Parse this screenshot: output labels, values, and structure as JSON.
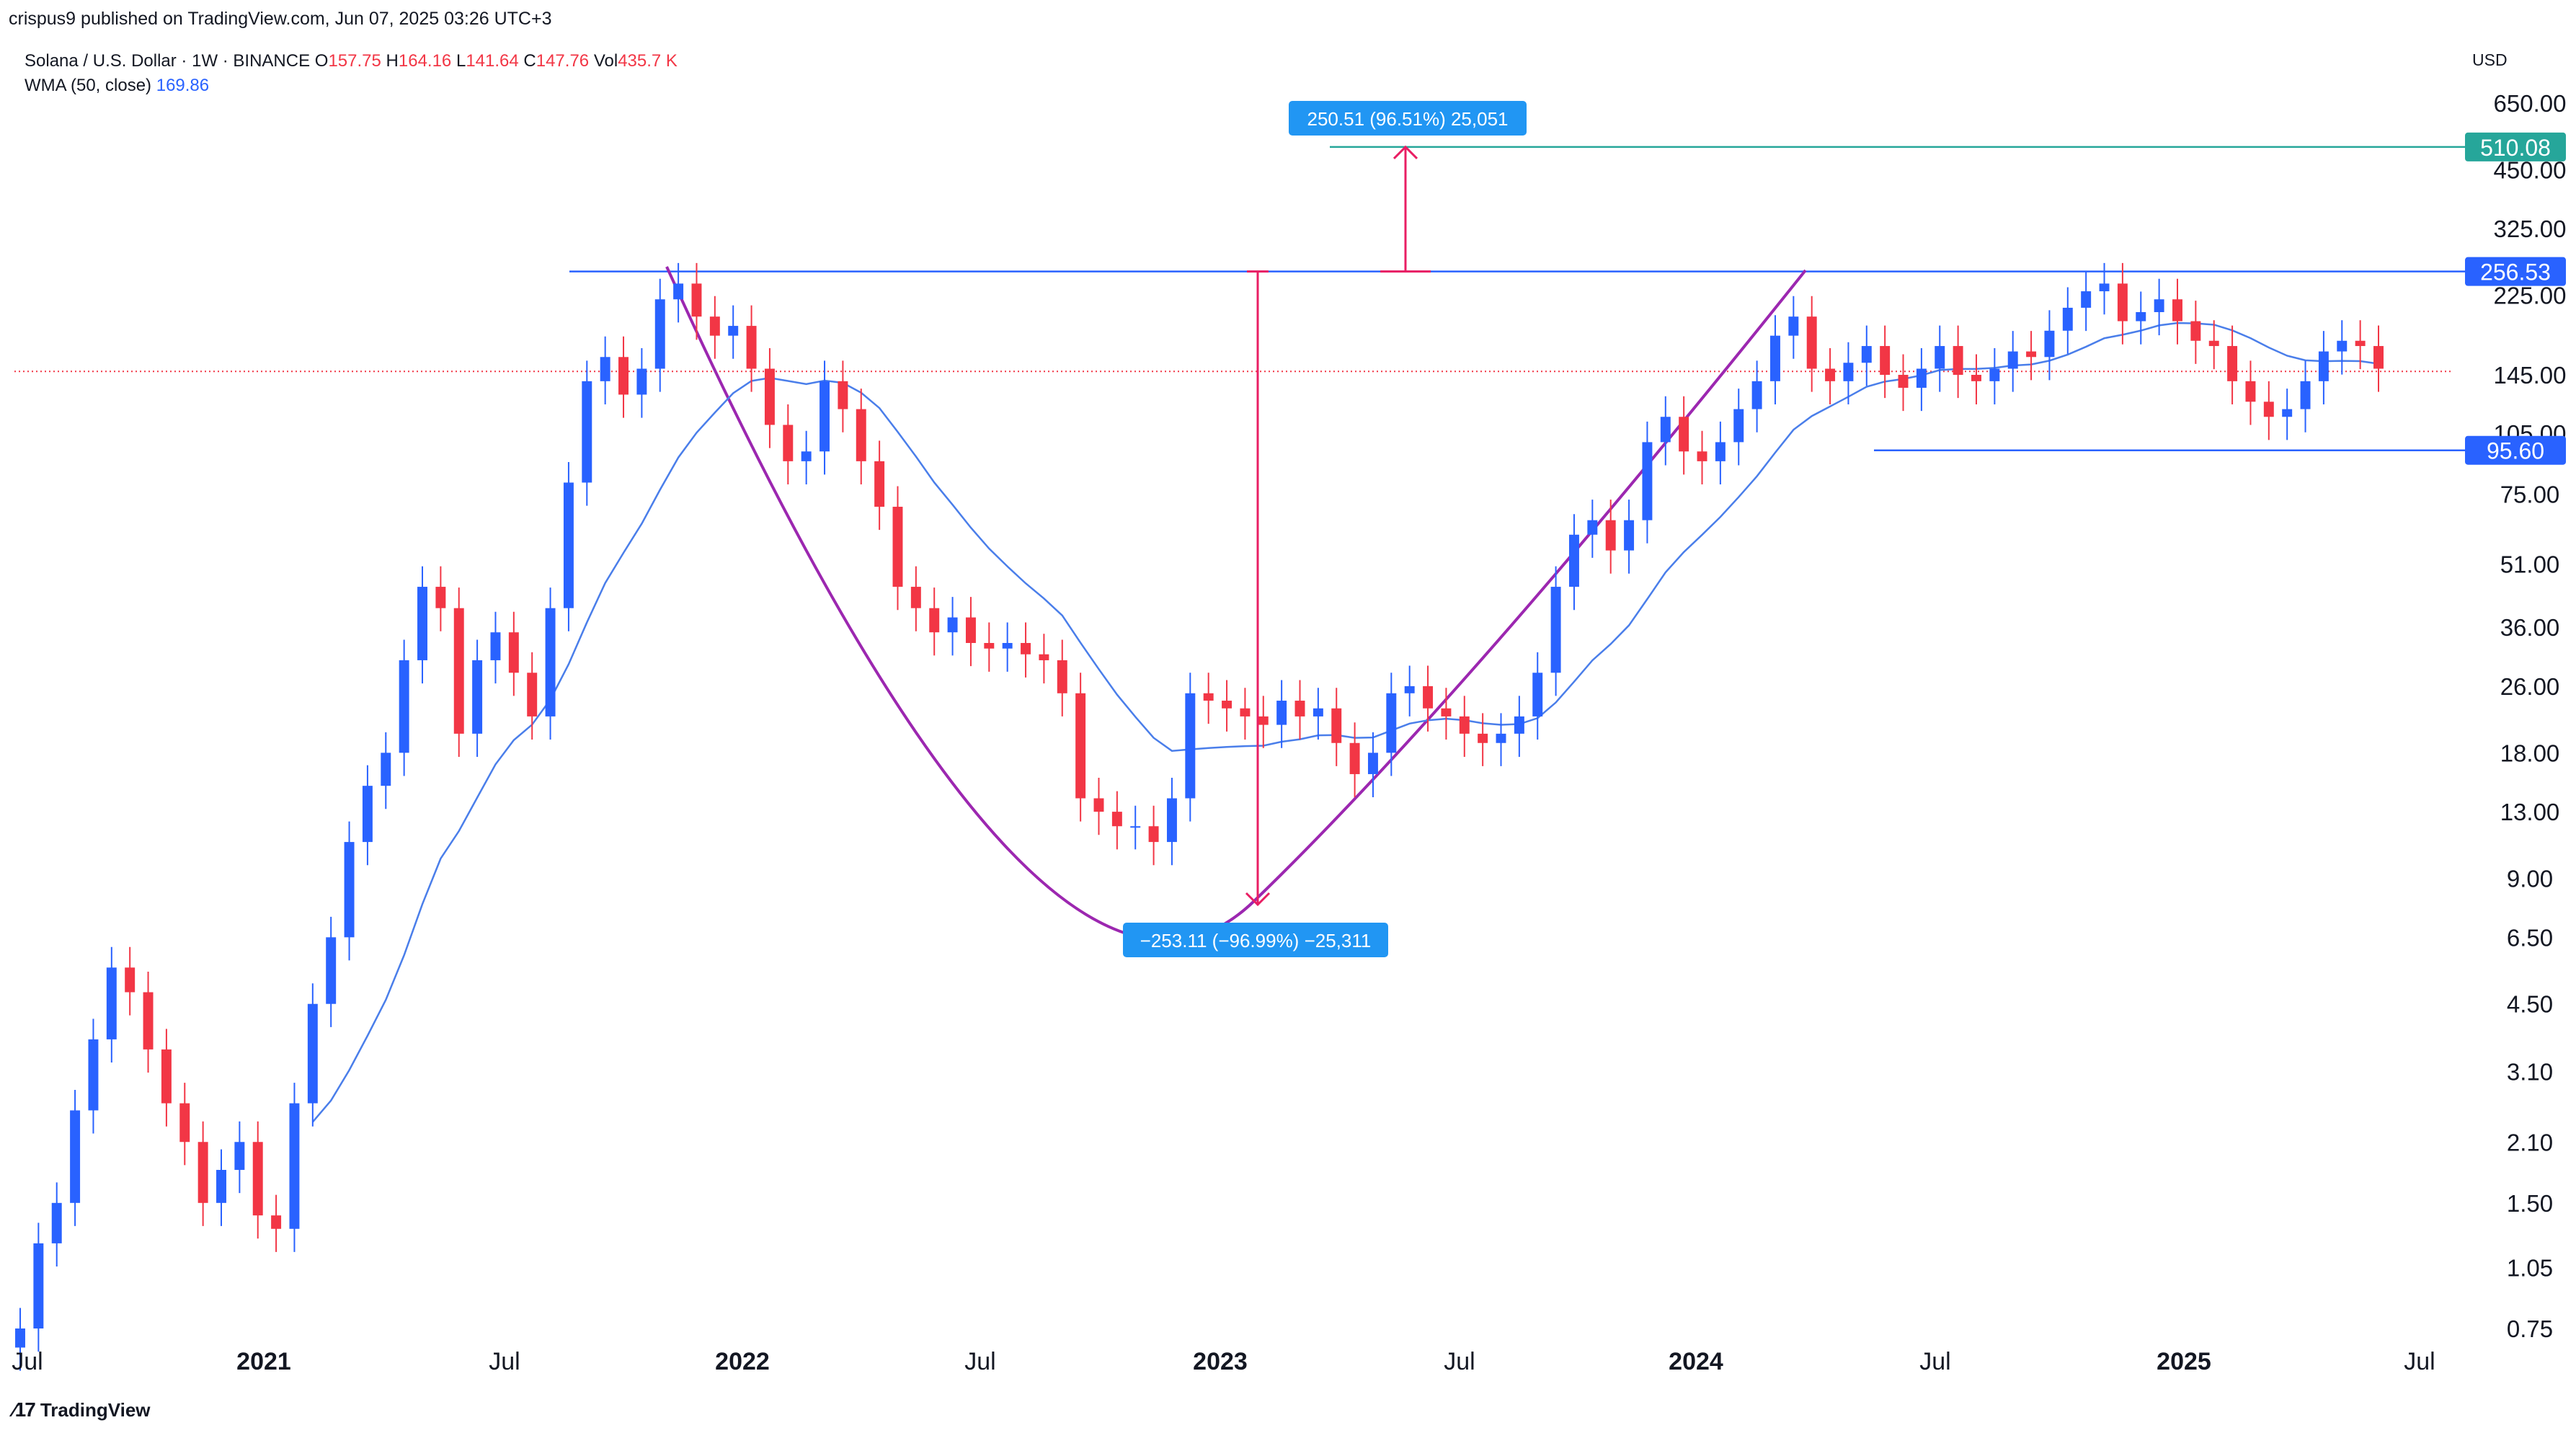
{
  "header": {
    "published": "crispus9 published on TradingView.com, Jun 07, 2025 03:26 UTC+3"
  },
  "legend": {
    "symbol": "Solana / U.S. Dollar · 1W · BINANCE",
    "open_label": "O",
    "open": "157.75",
    "high_label": "H",
    "high": "164.16",
    "low_label": "L",
    "low": "141.64",
    "close_label": "C",
    "close": "147.76",
    "vol_label": "Vol",
    "vol": "435.7 K",
    "wma_label": "WMA (50, close)",
    "wma_value": "169.86"
  },
  "currency": "USD",
  "footer": {
    "brand": "TradingView"
  },
  "colors": {
    "up": "#2962ff",
    "down": "#f23645",
    "wma": "#4a7eea",
    "cup": "#9c27b0",
    "measure": "#e91e63",
    "target": "#26a69a",
    "level": "#2962ff",
    "price_line": "#f23645"
  },
  "annotations": {
    "up_measure": "250.51 (96.51%) 25,051",
    "down_measure": "−253.11 (−96.99%) −25,311"
  },
  "chart_data": {
    "type": "candlestick",
    "title": "Solana / U.S. Dollar · 1W · BINANCE",
    "y_scale": "log",
    "ylim": [
      0.7,
      800
    ],
    "y_ticks": [
      "650.00",
      "450.00",
      "325.00",
      "225.00",
      "145.00",
      "105.00",
      "75.00",
      "51.00",
      "36.00",
      "26.00",
      "18.00",
      "13.00",
      "9.00",
      "6.50",
      "4.50",
      "3.10",
      "2.10",
      "1.50",
      "1.05",
      "0.75"
    ],
    "x_ticks": [
      {
        "label": "Jul",
        "bold": false
      },
      {
        "label": "2021",
        "bold": true
      },
      {
        "label": "Jul",
        "bold": false
      },
      {
        "label": "2022",
        "bold": true
      },
      {
        "label": "Jul",
        "bold": false
      },
      {
        "label": "2023",
        "bold": true
      },
      {
        "label": "Jul",
        "bold": false
      },
      {
        "label": "2024",
        "bold": true
      },
      {
        "label": "Jul",
        "bold": false
      },
      {
        "label": "2025",
        "bold": true
      },
      {
        "label": "Jul",
        "bold": false
      }
    ],
    "price_levels": [
      {
        "value": 510.08,
        "label": "510.08",
        "kind": "target"
      },
      {
        "value": 256.53,
        "label": "256.53",
        "kind": "resistance"
      },
      {
        "value": 95.6,
        "label": "95.60",
        "kind": "support"
      }
    ],
    "last_price": 147.76,
    "closes": [
      0.75,
      1.2,
      1.5,
      2.5,
      3.7,
      5.5,
      4.8,
      3.5,
      2.6,
      2.1,
      1.5,
      1.8,
      2.1,
      1.4,
      1.3,
      2.6,
      4.5,
      6.5,
      11,
      15,
      18,
      30,
      45,
      40,
      20,
      30,
      35,
      28,
      22,
      40,
      80,
      140,
      160,
      130,
      150,
      220,
      240,
      200,
      180,
      190,
      150,
      110,
      90,
      95,
      140,
      120,
      90,
      70,
      45,
      40,
      35,
      38,
      33,
      32,
      33,
      31,
      30,
      25,
      14,
      13,
      12,
      12,
      11,
      14,
      25,
      24,
      23,
      22,
      21,
      24,
      22,
      23,
      19,
      16,
      18,
      25,
      26,
      23,
      22,
      20,
      19,
      20,
      22,
      28,
      45,
      60,
      65,
      55,
      65,
      100,
      115,
      95,
      90,
      100,
      120,
      140,
      180,
      200,
      150,
      140,
      155,
      170,
      145,
      135,
      150,
      170,
      145,
      140,
      150,
      165,
      160,
      185,
      210,
      230,
      240,
      195,
      205,
      220,
      195,
      175,
      170,
      140,
      125,
      115,
      120,
      140,
      165,
      175,
      170,
      150
    ]
  }
}
